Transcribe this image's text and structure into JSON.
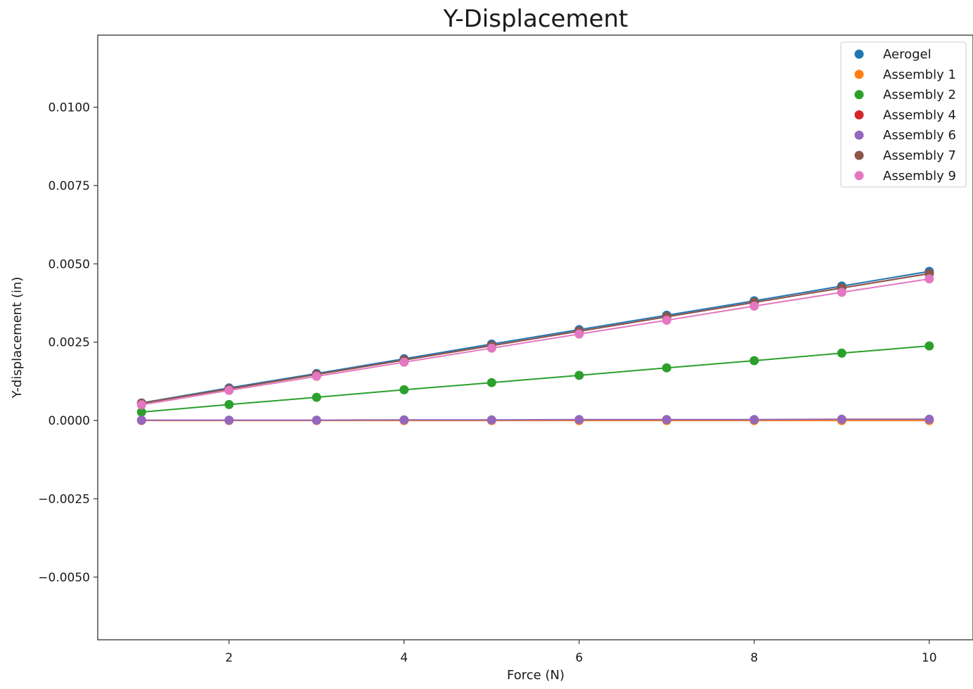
{
  "chart_data": {
    "type": "scatter",
    "title": "Y-Displacement",
    "xlabel": "Force (N)",
    "ylabel": "Y-displacement (in)",
    "xlim": [
      0.5,
      10.5
    ],
    "ylim": [
      -0.007,
      0.0123
    ],
    "xticks": [
      2,
      4,
      6,
      8,
      10
    ],
    "xtick_labels": [
      "2",
      "4",
      "6",
      "8",
      "10"
    ],
    "yticks": [
      -0.005,
      -0.0025,
      0.0,
      0.0025,
      0.005,
      0.0075,
      0.01
    ],
    "ytick_labels": [
      "−0.0050",
      "−0.0025",
      "0.0000",
      "0.0025",
      "0.0050",
      "0.0075",
      "0.0100"
    ],
    "grid": false,
    "legend_position": "top-right",
    "x": [
      1,
      2,
      3,
      4,
      5,
      6,
      7,
      8,
      9,
      10
    ],
    "series": [
      {
        "name": "Aerogel",
        "color": "#1f77b4",
        "values": [
          0.00056,
          0.00104,
          0.0015,
          0.00197,
          0.00244,
          0.0029,
          0.00336,
          0.00382,
          0.00429,
          0.00476
        ]
      },
      {
        "name": "Assembly 1",
        "color": "#ff7f0e",
        "values": [
          0.0,
          0.0,
          0.0,
          0.0,
          0.0,
          0.0,
          0.0,
          0.0,
          0.0,
          0.0
        ]
      },
      {
        "name": "Assembly 2",
        "color": "#2ca02c",
        "values": [
          0.00027,
          0.00051,
          0.00074,
          0.00098,
          0.00121,
          0.00144,
          0.00168,
          0.00191,
          0.00215,
          0.00238
        ]
      },
      {
        "name": "Assembly 4",
        "color": "#d62728",
        "values": [
          0.00055,
          0.00101,
          0.00147,
          0.00193,
          0.00239,
          0.00285,
          0.00331,
          0.00377,
          0.00423,
          0.00469
        ]
      },
      {
        "name": "Assembly 6",
        "color": "#9467bd",
        "values": [
          1e-05,
          1e-05,
          1e-05,
          2e-05,
          2e-05,
          3e-05,
          3e-05,
          3e-05,
          4e-05,
          4e-05
        ]
      },
      {
        "name": "Assembly 7",
        "color": "#8c564b",
        "values": [
          0.00055,
          0.00101,
          0.00147,
          0.00193,
          0.00239,
          0.00285,
          0.00331,
          0.00377,
          0.00423,
          0.00469
        ]
      },
      {
        "name": "Assembly 9",
        "color": "#e377c2",
        "values": [
          0.0005,
          0.00096,
          0.00141,
          0.00186,
          0.00231,
          0.00276,
          0.0032,
          0.00365,
          0.00409,
          0.00452
        ]
      }
    ]
  }
}
